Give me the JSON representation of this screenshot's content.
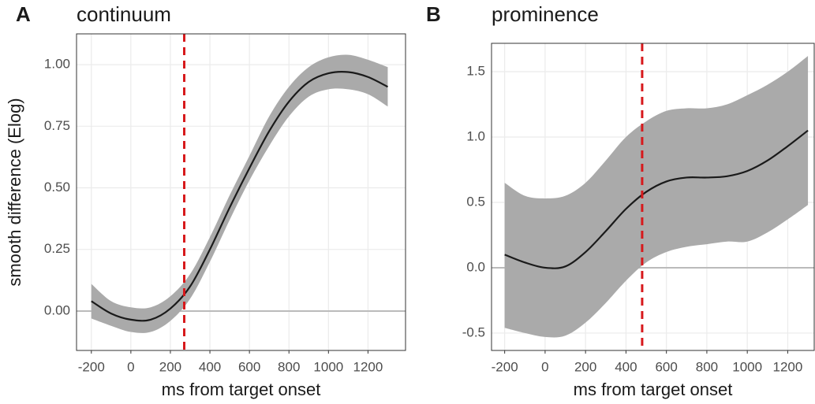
{
  "chart_data": [
    {
      "type": "line",
      "panel": "A",
      "title": "continuum",
      "x_label": "ms from target onset",
      "y_label": "smooth difference (Elog)",
      "x": [
        -200,
        -100,
        0,
        100,
        200,
        300,
        400,
        500,
        600,
        700,
        800,
        900,
        1000,
        1100,
        1200,
        1300
      ],
      "values": [
        0.04,
        -0.01,
        -0.035,
        -0.035,
        0.01,
        0.1,
        0.25,
        0.42,
        0.58,
        0.73,
        0.85,
        0.93,
        0.965,
        0.97,
        0.95,
        0.91
      ],
      "lower": [
        -0.03,
        -0.06,
        -0.085,
        -0.085,
        -0.04,
        0.05,
        0.2,
        0.37,
        0.53,
        0.67,
        0.79,
        0.87,
        0.9,
        0.9,
        0.88,
        0.83
      ],
      "upper": [
        0.11,
        0.04,
        0.015,
        0.015,
        0.06,
        0.15,
        0.3,
        0.47,
        0.63,
        0.79,
        0.91,
        0.99,
        1.03,
        1.04,
        1.02,
        0.99
      ],
      "color": "#1a1a1a",
      "band_color": "#aaaaaa",
      "vline": 270,
      "vline_color": "#d7191c",
      "hline": 0,
      "xlim": [
        -275,
        1390
      ],
      "ylim": [
        -0.16,
        1.125
      ],
      "xticks": [
        -200,
        0,
        200,
        400,
        600,
        800,
        1000,
        1200
      ],
      "yticks": [
        {
          "value": 0,
          "label": "0.00"
        },
        {
          "value": 0.25,
          "label": "0.25"
        },
        {
          "value": 0.5,
          "label": "0.50"
        },
        {
          "value": 0.75,
          "label": "0.75"
        },
        {
          "value": 1,
          "label": "1.00"
        }
      ],
      "grid": true
    },
    {
      "type": "line",
      "panel": "B",
      "title": "prominence",
      "x_label": "ms from target onset",
      "x": [
        -200,
        -100,
        0,
        100,
        200,
        300,
        400,
        500,
        600,
        700,
        800,
        900,
        1000,
        1100,
        1200,
        1300
      ],
      "values": [
        0.1,
        0.04,
        0.0,
        0.01,
        0.12,
        0.28,
        0.45,
        0.58,
        0.66,
        0.69,
        0.69,
        0.7,
        0.74,
        0.82,
        0.93,
        1.05
      ],
      "lower": [
        -0.46,
        -0.5,
        -0.53,
        -0.52,
        -0.42,
        -0.27,
        -0.1,
        0.04,
        0.12,
        0.16,
        0.18,
        0.2,
        0.2,
        0.27,
        0.37,
        0.48
      ],
      "upper": [
        0.65,
        0.55,
        0.53,
        0.55,
        0.65,
        0.82,
        1.0,
        1.12,
        1.2,
        1.22,
        1.22,
        1.25,
        1.32,
        1.4,
        1.5,
        1.62
      ],
      "color": "#1a1a1a",
      "band_color": "#aaaaaa",
      "vline": 480,
      "vline_color": "#d7191c",
      "hline": 0,
      "xlim": [
        -265,
        1331
      ],
      "ylim": [
        -0.633,
        1.717
      ],
      "xticks": [
        -200,
        0,
        200,
        400,
        600,
        800,
        1000,
        1200
      ],
      "yticks": [
        -0.5,
        {
          "value": 0,
          "label": "0.0"
        },
        {
          "value": 0.5,
          "label": "0.5"
        },
        {
          "value": 1,
          "label": "1.0"
        },
        1.5
      ],
      "grid": true
    }
  ]
}
